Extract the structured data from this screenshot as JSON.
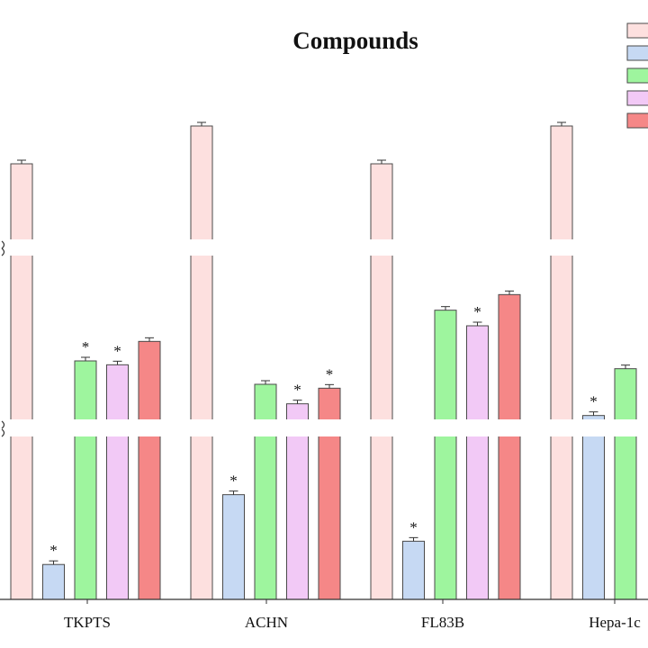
{
  "chart_data": {
    "type": "bar",
    "title": "Compounds",
    "categories": [
      "TKPTS",
      "ACHN",
      "FL83B",
      "Hepa-1c"
    ],
    "axis_break": true,
    "series": [
      {
        "color": "#fde0df",
        "values": [
          100,
          102,
          100,
          102
        ],
        "significant": [
          false,
          false,
          false,
          false
        ]
      },
      {
        "color": "#c6d9f3",
        "values": [
          6,
          18,
          10,
          29
        ],
        "significant": [
          true,
          true,
          true,
          true
        ]
      },
      {
        "color": "#9ef59e",
        "values": [
          43,
          37,
          56,
          41
        ],
        "significant": [
          true,
          false,
          false,
          false
        ]
      },
      {
        "color": "#f2c9f6",
        "values": [
          42,
          32,
          52,
          null
        ],
        "significant": [
          true,
          true,
          true,
          false
        ]
      },
      {
        "color": "#f58787",
        "values": [
          48,
          36,
          60,
          null
        ],
        "significant": [
          false,
          true,
          false,
          false
        ]
      }
    ],
    "legend_position": "top-right",
    "grid": false
  }
}
